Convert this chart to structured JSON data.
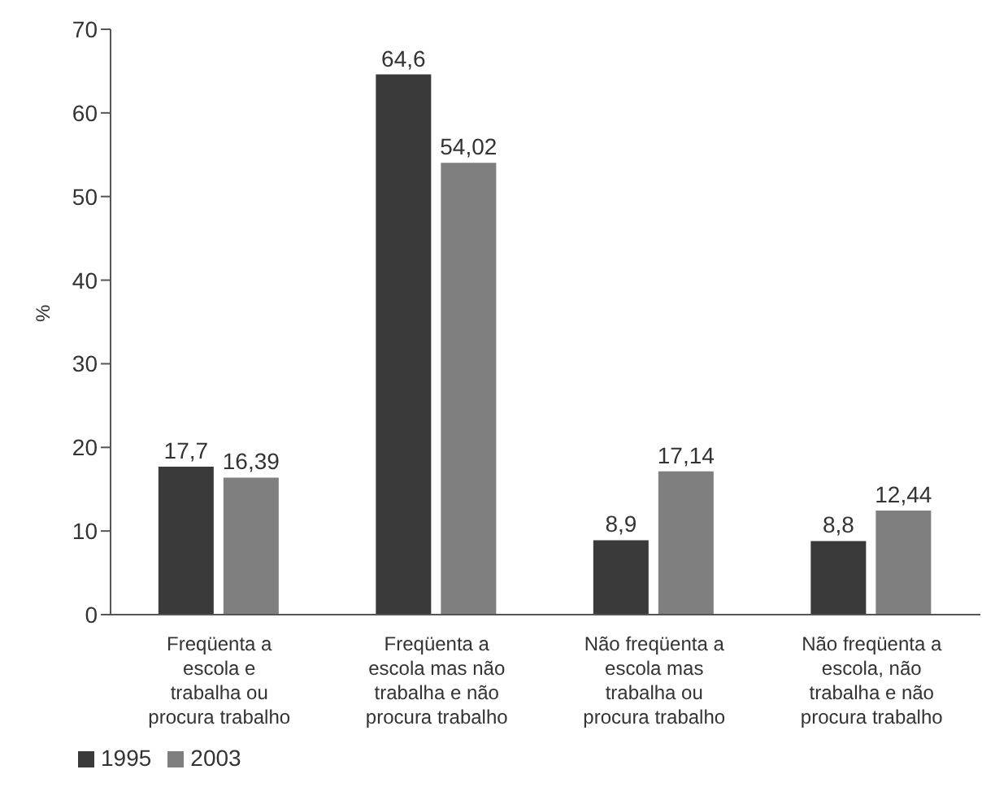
{
  "chart_data": {
    "type": "bar",
    "ylabel": "%",
    "categories": [
      "Freqüenta a escola e trabalha ou procura trabalho",
      "Freqüenta a escola mas não trabalha e não procura trabalho",
      "Não freqüenta a escola mas trabalha ou procura trabalho",
      "Não freqüenta a escola, não trabalha e não procura trabalho"
    ],
    "series": [
      {
        "name": "1995",
        "color": "#3a3a3a",
        "values": [
          17.7,
          64.6,
          8.9,
          8.8
        ],
        "value_labels": [
          "17,7",
          "64,6",
          "8,9",
          "8,8"
        ]
      },
      {
        "name": "2003",
        "color": "#7f7f7f",
        "values": [
          16.39,
          54.02,
          17.14,
          12.44
        ],
        "value_labels": [
          "16,39",
          "54,02",
          "17,14",
          "12,44"
        ]
      }
    ],
    "ylim": [
      0,
      70
    ],
    "yticks": [
      0,
      10,
      20,
      30,
      40,
      50,
      60,
      70
    ],
    "grid": false,
    "legend": "bottom left"
  }
}
